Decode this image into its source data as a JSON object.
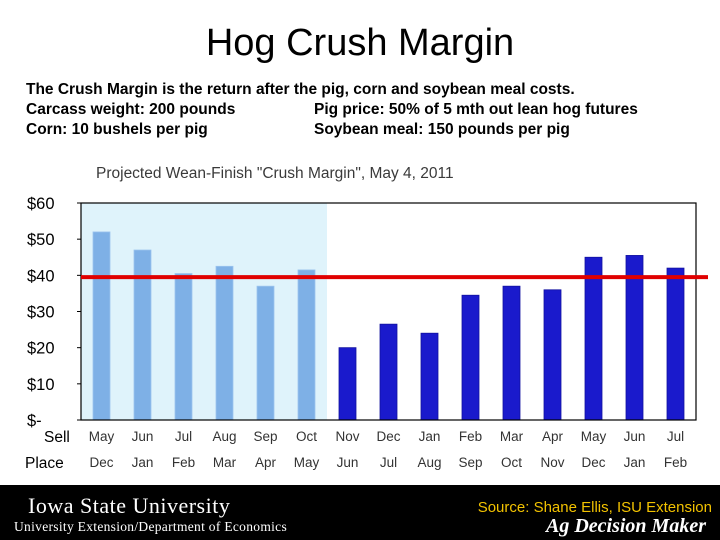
{
  "slide": {
    "title": "Hog Crush Margin",
    "line1": "The Crush Margin is the return after the pig, corn and soybean meal costs.",
    "line2a": "Carcass weight:  200 pounds",
    "line2b": "Pig price:  50% of 5 mth out lean hog futures",
    "line3a": "Corn:  10 bushels per pig",
    "line3b": "Soybean meal:  150 pounds per pig"
  },
  "footer": {
    "university": "Iowa State University",
    "department": "University Extension/Department of Economics",
    "source": "Source: Shane Ellis, ISU Extension",
    "brand": "Ag Decision Maker"
  },
  "colors": {
    "historical_bar": "#7eb0e6",
    "projected_bar": "#1a1acc",
    "shade": "#dff3fb",
    "reference_line": "#e00000"
  },
  "chart_data": {
    "type": "bar",
    "title": "Projected Wean-Finish \"Crush Margin\", May 4, 2011",
    "row_labels": [
      "Sell",
      "Place"
    ],
    "sell": [
      "May",
      "Jun",
      "Jul",
      "Aug",
      "Sep",
      "Oct",
      "Nov",
      "Dec",
      "Jan",
      "Feb",
      "Mar",
      "Apr",
      "May",
      "Jun",
      "Jul"
    ],
    "place": [
      "Dec",
      "Jan",
      "Feb",
      "Mar",
      "Apr",
      "May",
      "Jun",
      "Jul",
      "Aug",
      "Sep",
      "Oct",
      "Nov",
      "Dec",
      "Jan",
      "Feb"
    ],
    "values": [
      52,
      47,
      40.5,
      42.5,
      37,
      41.5,
      20,
      26.5,
      24,
      34.5,
      37,
      36,
      45,
      45.5,
      42
    ],
    "historical_count": 6,
    "reference_line": 39.5,
    "ylim": [
      0,
      60
    ],
    "yticks": [
      0,
      10,
      20,
      30,
      40,
      50,
      60
    ],
    "ytick_labels": [
      "$-",
      "$10",
      "$20",
      "$30",
      "$40",
      "$50",
      "$60"
    ],
    "grid": false
  }
}
